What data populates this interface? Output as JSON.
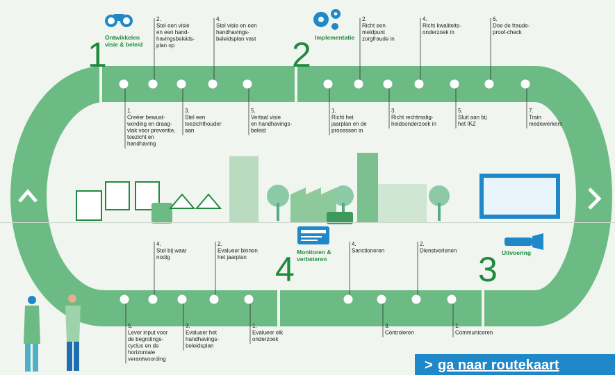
{
  "phases": [
    {
      "number": "1",
      "title": [
        "Ontwikkelen",
        "visie & beleid"
      ],
      "steps": [
        {
          "number": "1.",
          "lines": [
            "Creëer bewust-",
            "wording en draag-",
            "vlak voor preventie,",
            "toezicht en",
            "handhaving"
          ]
        },
        {
          "number": "2.",
          "lines": [
            "Stel een visie",
            "en een hand-",
            "havingsbeleids-",
            "plan op"
          ]
        },
        {
          "number": "3.",
          "lines": [
            "Stel een",
            "toezichthouder",
            "aan"
          ]
        },
        {
          "number": "4.",
          "lines": [
            "Stel visie en een",
            "handhavings-",
            "beleidsplan vast"
          ]
        },
        {
          "number": "5.",
          "lines": [
            "Vertaal visie",
            "en handhavings-",
            "beleid"
          ]
        }
      ]
    },
    {
      "number": "2",
      "title": [
        "Implementatie"
      ],
      "steps": [
        {
          "number": "1.",
          "lines": [
            "Richt het",
            "jaarplan en de",
            "processen in"
          ]
        },
        {
          "number": "2.",
          "lines": [
            "Richt een",
            "meldpunt",
            "zorgfraude in"
          ]
        },
        {
          "number": "3.",
          "lines": [
            "Richt rechtmatig-",
            "heidsonderzoek in"
          ]
        },
        {
          "number": "4.",
          "lines": [
            "Richt kwaliteits-",
            "onderzoek in"
          ]
        },
        {
          "number": "5.",
          "lines": [
            "Sluit aan bij",
            "het IKZ"
          ]
        },
        {
          "number": "6.",
          "lines": [
            "Doe de fraude-",
            "proof-check"
          ]
        },
        {
          "number": "7.",
          "lines": [
            "Train",
            "medewerkers"
          ]
        }
      ]
    },
    {
      "number": "3",
      "title": [
        "Uitvoering"
      ],
      "steps": [
        {
          "number": "1.",
          "lines": [
            "Communiceren"
          ]
        },
        {
          "number": "2.",
          "lines": [
            "Dienstverlenen"
          ]
        },
        {
          "number": "3.",
          "lines": [
            "Controleren"
          ]
        },
        {
          "number": "4.",
          "lines": [
            "Sanctioneren"
          ]
        }
      ]
    },
    {
      "number": "4",
      "title": [
        "Monitoren &",
        "verbeteren"
      ],
      "steps": [
        {
          "number": "1.",
          "lines": [
            "Evalueer elk",
            "onderzoek"
          ]
        },
        {
          "number": "2.",
          "lines": [
            "Evalueer binnen",
            "het jaarplan"
          ]
        },
        {
          "number": "3.",
          "lines": [
            "Evalueer het",
            "handhavings-",
            "beleidsplan"
          ]
        },
        {
          "number": "4.",
          "lines": [
            "Stel bij waar",
            "nodig"
          ]
        },
        {
          "number": "5.",
          "lines": [
            "Lever input voor",
            "de begrotings-",
            "cyclus en de",
            "horizontale",
            "verantwoording"
          ]
        }
      ]
    }
  ],
  "button": {
    "arrow": ">",
    "label": "ga naar routekaart"
  }
}
